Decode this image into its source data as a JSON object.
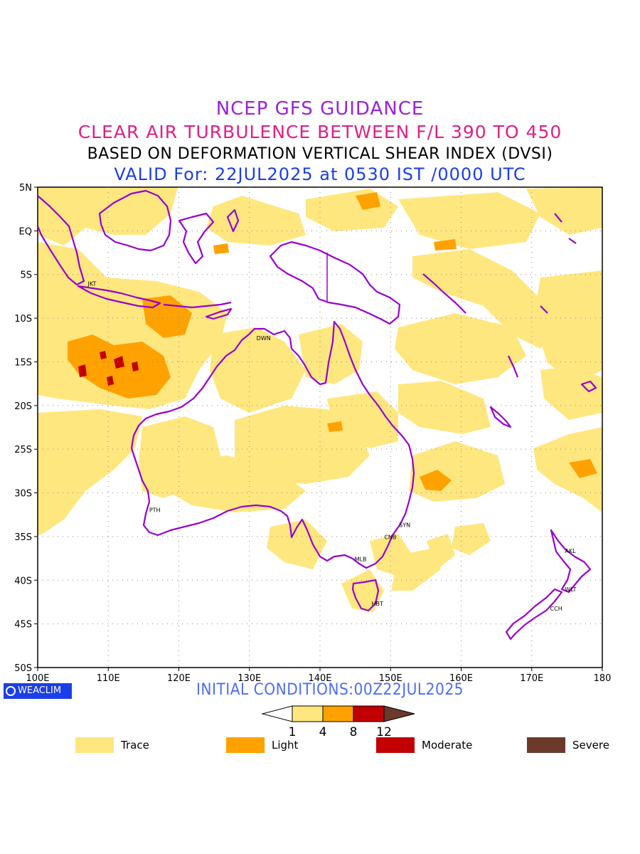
{
  "header": {
    "line1": "NCEP GFS GUIDANCE",
    "line2": "CLEAR AIR TURBULENCE BETWEEN F/L 390 TO 450",
    "line3": "BASED ON DEFORMATION VERTICAL SHEAR INDEX (DVSI)",
    "line4": "VALID For: 22JUL2025 at 0530 IST /0000 UTC"
  },
  "axes": {
    "lat_labels": [
      "5N",
      "EQ",
      "5S",
      "10S",
      "15S",
      "20S",
      "25S",
      "30S",
      "35S",
      "40S",
      "45S",
      "50S"
    ],
    "lon_labels": [
      "100E",
      "110E",
      "120E",
      "130E",
      "140E",
      "150E",
      "160E",
      "170E",
      "180"
    ],
    "lat_range": [
      5,
      -50
    ],
    "lon_range": [
      100,
      180
    ]
  },
  "cities": [
    {
      "code": "JKT",
      "lon": 107.1,
      "lat": -6.3
    },
    {
      "code": "DWN",
      "lon": 131.0,
      "lat": -12.5
    },
    {
      "code": "PTH",
      "lon": 115.8,
      "lat": -32.2
    },
    {
      "code": "SYN",
      "lon": 151.2,
      "lat": -33.9
    },
    {
      "code": "CNB",
      "lon": 149.1,
      "lat": -35.3
    },
    {
      "code": "MLB",
      "lon": 144.9,
      "lat": -37.8
    },
    {
      "code": "HBT",
      "lon": 147.3,
      "lat": -42.9
    },
    {
      "code": "AKL",
      "lon": 174.7,
      "lat": -36.9
    },
    {
      "code": "WLT",
      "lon": 174.7,
      "lat": -41.3
    },
    {
      "code": "CCH",
      "lon": 172.6,
      "lat": -43.5
    }
  ],
  "footer": {
    "logo_text": "WEACLIM",
    "initial": "INITIAL CONDITIONS:00Z22JUL2025"
  },
  "colorbar": {
    "ticks": [
      "1",
      "4",
      "8",
      "12"
    ],
    "colors": [
      "#ffffff",
      "#ffe780",
      "#ffa200",
      "#c20000",
      "#6b3a2a"
    ]
  },
  "legend": [
    {
      "label": "Trace",
      "color": "#ffe780"
    },
    {
      "label": "Light",
      "color": "#ffa200"
    },
    {
      "label": "Moderate",
      "color": "#c20000"
    },
    {
      "label": "Severe",
      "color": "#6b3a2a"
    }
  ],
  "colors": {
    "coast": "#9900cc",
    "trace": "#ffe780",
    "light": "#ffa200",
    "moderate": "#c20000"
  }
}
